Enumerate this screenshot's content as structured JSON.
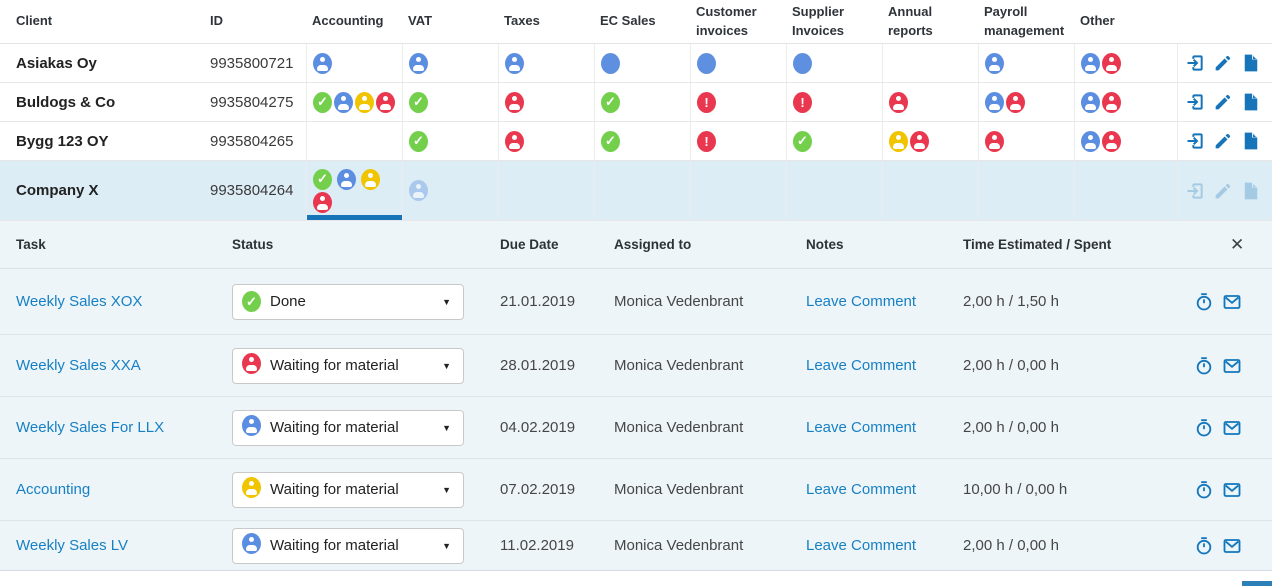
{
  "colors": {
    "accent_blue": "#1774b8",
    "link_blue": "#1780c4",
    "icon_blue": "#5b8de1",
    "icon_green": "#74d04c",
    "icon_yellow": "#f1c400",
    "icon_red": "#e8374e",
    "selected_row_bg": "#ddedf6",
    "panel_bg": "#eef5f9"
  },
  "icons_legend": {
    "user-blue": "assigned-user status bubble",
    "user-red": "overdue-user status bubble",
    "user-yellow": "pending-user status bubble",
    "check-green": "done checkmark bubble",
    "alert-red": "alert exclamation bubble",
    "dot-blue": "plain status dot",
    "open": "enter-arrow icon",
    "edit": "pencil icon",
    "document": "file icon",
    "timer": "stopwatch icon",
    "mail": "envelope icon"
  },
  "clients_table": {
    "headers": {
      "client": "Client",
      "id": "ID",
      "accounting": "Accounting",
      "vat": "VAT",
      "taxes": "Taxes",
      "ec_sales": "EC Sales",
      "customer_invoices": "Customer invoices",
      "supplier_invoices": "Supplier Invoices",
      "annual_reports": "Annual reports",
      "payroll_management": "Payroll management",
      "other": "Other"
    },
    "rows": [
      {
        "name": "Asiakas Oy",
        "id": "9935800721",
        "cells": {
          "accounting": [
            "user-blue"
          ],
          "vat": [
            "user-blue"
          ],
          "taxes": [
            "user-blue"
          ],
          "ec_sales": [
            "dot-blue"
          ],
          "customer_invoices": [
            "dot-blue"
          ],
          "supplier_invoices": [
            "dot-blue"
          ],
          "annual_reports": [],
          "payroll_management": [
            "user-blue"
          ],
          "other": [
            "user-blue",
            "user-red"
          ]
        }
      },
      {
        "name": "Buldogs & Co",
        "id": "9935804275",
        "cells": {
          "accounting": [
            "check-green",
            "user-blue",
            "user-yellow",
            "user-red"
          ],
          "vat": [
            "check-green"
          ],
          "taxes": [
            "user-red"
          ],
          "ec_sales": [
            "check-green"
          ],
          "customer_invoices": [
            "alert-red"
          ],
          "supplier_invoices": [
            "alert-red"
          ],
          "annual_reports": [
            "user-red"
          ],
          "payroll_management": [
            "user-blue",
            "user-red"
          ],
          "other": [
            "user-blue",
            "user-red"
          ]
        }
      },
      {
        "name": "Bygg 123 OY",
        "id": "9935804265",
        "cells": {
          "accounting": [],
          "vat": [
            "check-green"
          ],
          "taxes": [
            "user-red"
          ],
          "ec_sales": [
            "check-green"
          ],
          "customer_invoices": [
            "alert-red"
          ],
          "supplier_invoices": [
            "check-green"
          ],
          "annual_reports": [
            "user-yellow",
            "user-red"
          ],
          "payroll_management": [
            "user-red"
          ],
          "other": [
            "user-blue",
            "user-red"
          ]
        }
      },
      {
        "name": "Company X",
        "id": "9935804264",
        "selected": true,
        "cells": {
          "accounting": [
            "check-green",
            "user-blue",
            "user-yellow",
            "user-red"
          ],
          "vat": [
            "user-blue-faded"
          ],
          "taxes": [],
          "ec_sales": [],
          "customer_invoices": [],
          "supplier_invoices": [],
          "annual_reports": [],
          "payroll_management": [],
          "other": []
        }
      }
    ]
  },
  "tasks_panel": {
    "headers": {
      "task": "Task",
      "status": "Status",
      "due": "Due Date",
      "assigned": "Assigned to",
      "notes": "Notes",
      "time": "Time Estimated / Spent"
    },
    "close_icon": "✕",
    "caret": "▼",
    "rows": [
      {
        "task": "Weekly Sales XOX",
        "status": "Done",
        "status_icon": "check-green",
        "due": "21.01.2019",
        "assigned": "Monica Vedenbrant",
        "notes": "Leave Comment",
        "time": "2,00 h / 1,50 h"
      },
      {
        "task": "Weekly Sales XXA",
        "status": "Waiting for material",
        "status_icon": "user-red",
        "due": "28.01.2019",
        "assigned": "Monica Vedenbrant",
        "notes": "Leave Comment",
        "time": "2,00 h / 0,00 h"
      },
      {
        "task": "Weekly Sales For LLX",
        "status": "Waiting for material",
        "status_icon": "user-blue",
        "due": "04.02.2019",
        "assigned": "Monica Vedenbrant",
        "notes": "Leave Comment",
        "time": "2,00 h / 0,00 h"
      },
      {
        "task": "Accounting",
        "status": "Waiting for material",
        "status_icon": "user-yellow",
        "due": "07.02.2019",
        "assigned": "Monica Vedenbrant",
        "notes": "Leave Comment",
        "time": "10,00 h / 0,00 h"
      },
      {
        "task": "Weekly Sales LV",
        "status": "Waiting for material",
        "status_icon": "user-blue",
        "due": "11.02.2019",
        "assigned": "Monica Vedenbrant",
        "notes": "Leave Comment",
        "time": "2,00 h / 0,00 h"
      }
    ]
  }
}
